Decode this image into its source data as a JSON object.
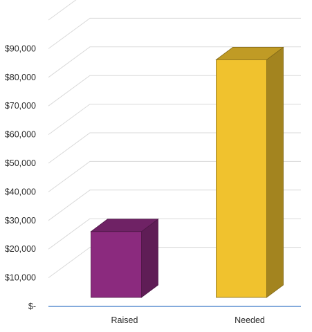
{
  "chart_data": {
    "type": "bar",
    "style": "3d-column",
    "categories": [
      "Raised",
      "Needed"
    ],
    "values": [
      23000,
      83000
    ],
    "ylim": [
      0,
      90000
    ],
    "y_ticks": [
      0,
      10000,
      20000,
      30000,
      40000,
      50000,
      60000,
      70000,
      80000,
      90000
    ],
    "y_tick_labels": [
      "$-",
      "$10,000",
      "$20,000",
      "$30,000",
      "$40,000",
      "$50,000",
      "$60,000",
      "$70,000",
      "$80,000",
      "$90,000"
    ],
    "grid": true,
    "legend": "none",
    "colors": {
      "Raised": "#8b2a7e",
      "Needed": "#f0c22e",
      "axis": "#5b8fd1",
      "grid": "#d9d9d9"
    }
  }
}
